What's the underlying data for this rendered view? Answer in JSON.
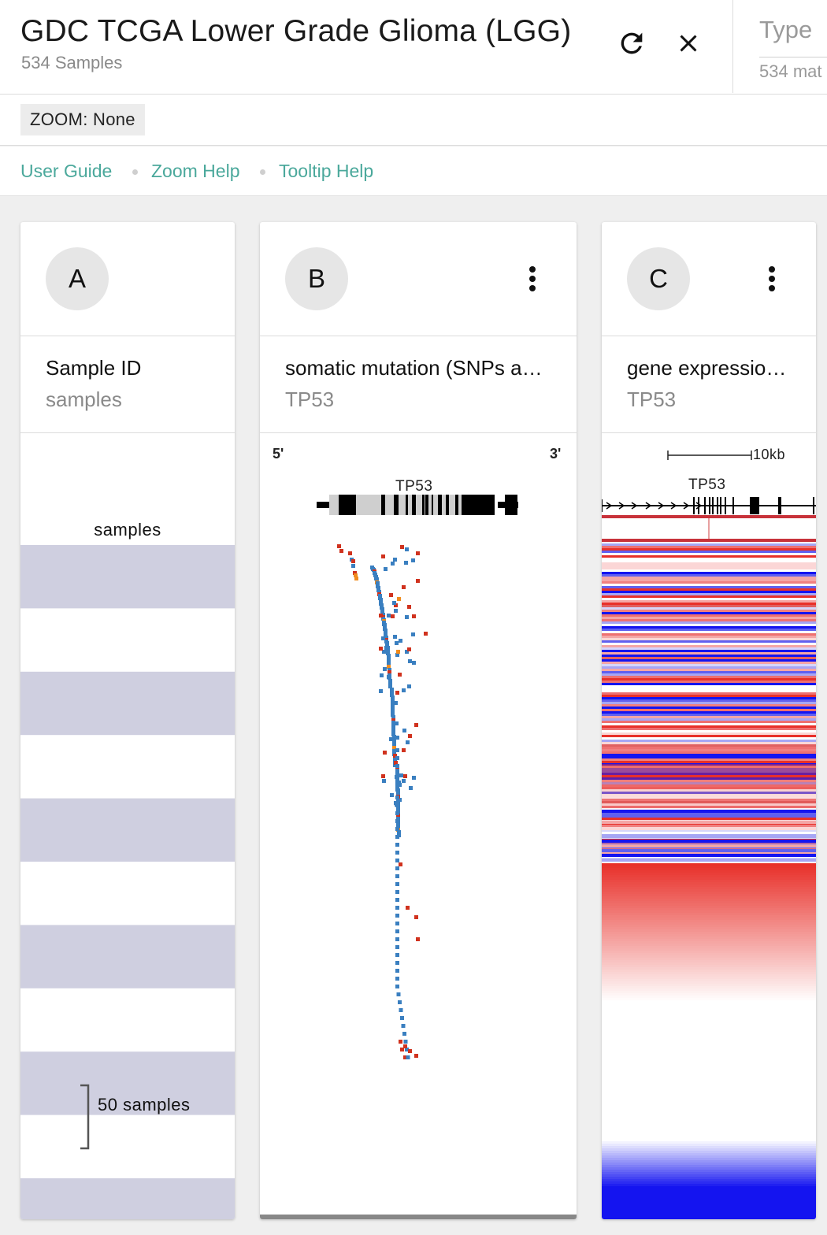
{
  "header": {
    "title": "GDC TCGA Lower Grade Glioma (LGG)",
    "sample_count": "534 Samples",
    "refresh_icon": "refresh-icon",
    "close_icon": "close-icon",
    "type_title": "Type",
    "type_sub": "534 mat"
  },
  "zoom": {
    "label": "ZOOM: None"
  },
  "links": [
    "User Guide",
    "Zoom Help",
    "Tooltip Help"
  ],
  "columns": [
    {
      "letter": "A",
      "field": "Sample ID",
      "sub": "samples",
      "viz_label": "samples",
      "scale_label": "50 samples",
      "band_color": "#cfcfe0"
    },
    {
      "letter": "B",
      "field": "somatic mutation (SNPs and small INDELs)",
      "sub": "TP53",
      "menu_icon": "more-vert-icon",
      "five_prime": "5'",
      "three_prime": "3'",
      "gene": "TP53"
    },
    {
      "letter": "C",
      "field": "gene expression RNAseq",
      "sub": "TP53",
      "menu_icon": "more-vert-icon",
      "scale_label": "10kb",
      "gene": "TP53"
    }
  ],
  "colors": {
    "link": "#4aa89b",
    "mutation_blue": "#3a7fc0",
    "mutation_red": "#d0321e",
    "mutation_orange": "#f08c1e",
    "expr_red": "#e8302a",
    "expr_blue": "#1414f0"
  }
}
